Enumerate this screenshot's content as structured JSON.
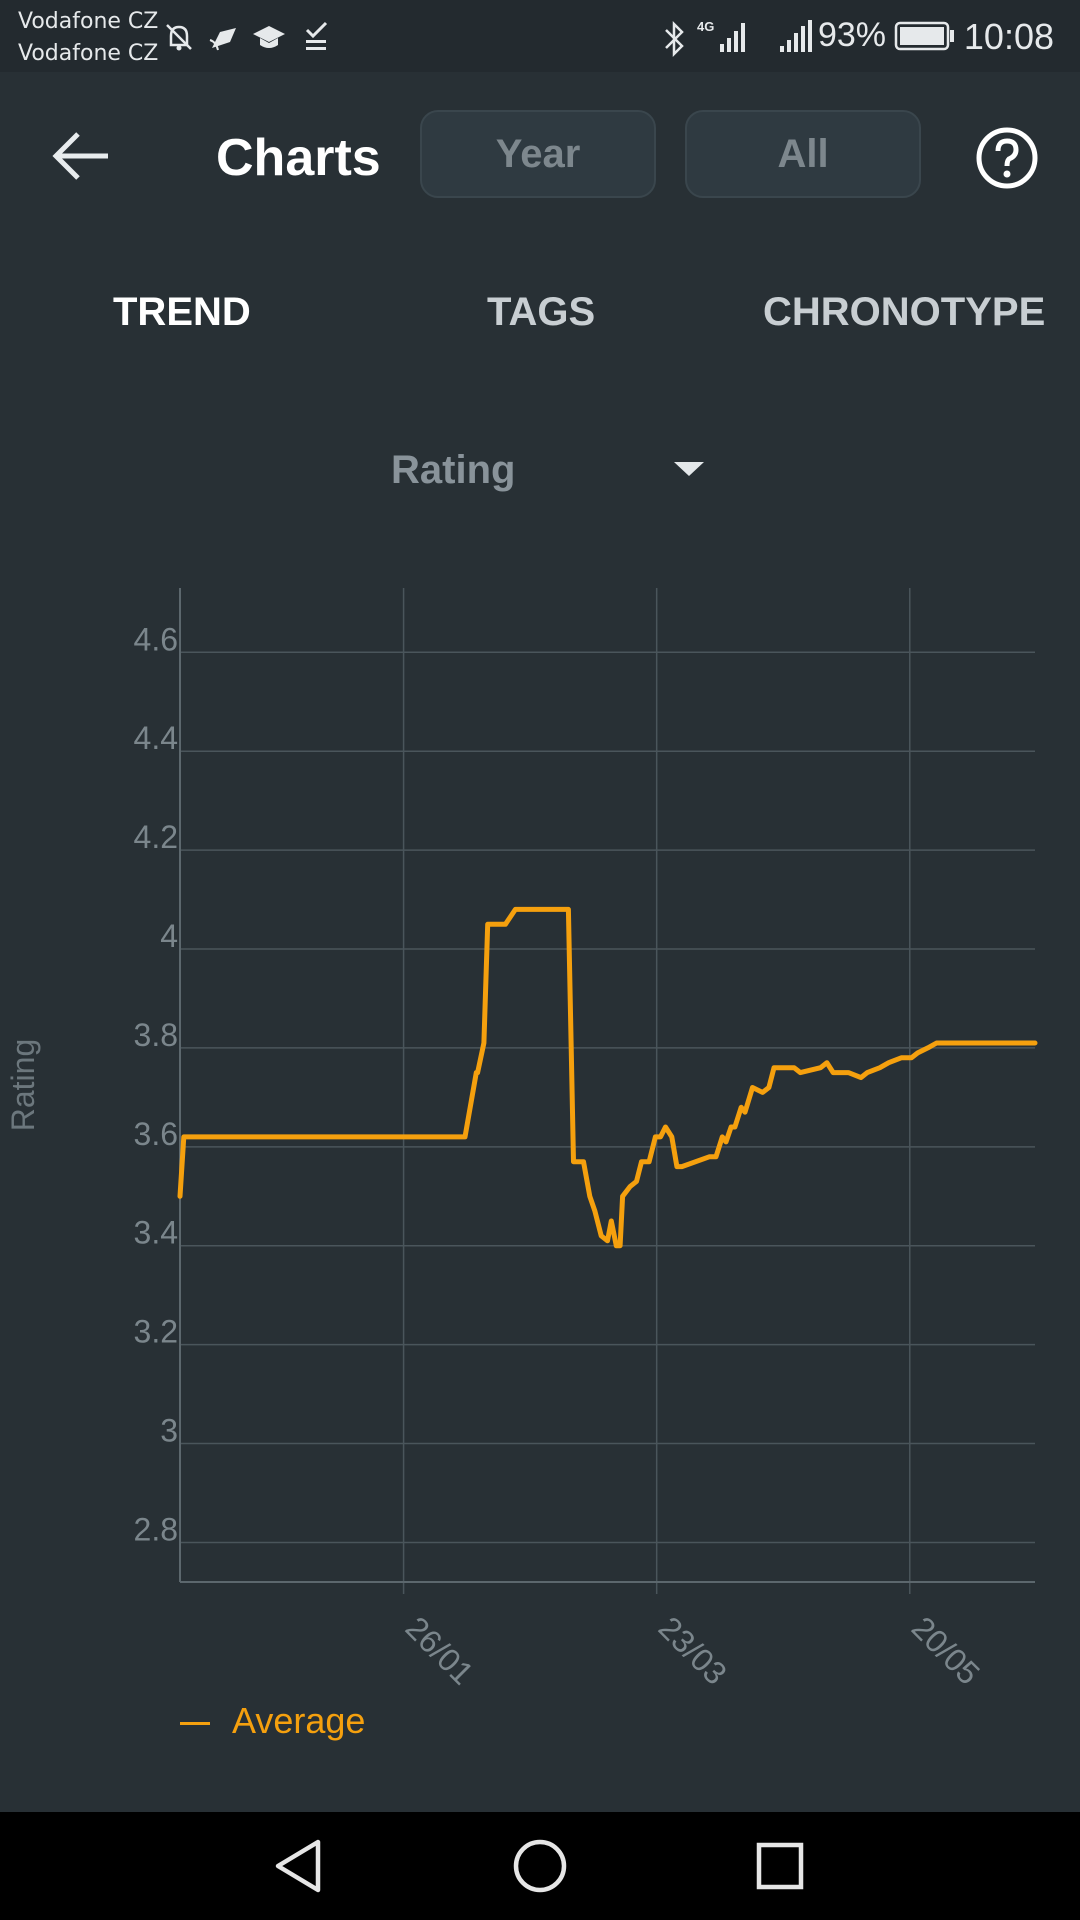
{
  "status_bar": {
    "carrier_1": "Vodafone CZ",
    "carrier_2": "Vodafone CZ",
    "battery_percent": "93%",
    "time": "10:08",
    "icons": [
      "notifications-off-icon",
      "cast-icon",
      "school-icon",
      "task-done-icon",
      "bluetooth-icon",
      "4g-signal-icon",
      "signal-icon",
      "battery-icon"
    ]
  },
  "header": {
    "title": "Charts",
    "period_options": [
      "Year",
      "All"
    ],
    "back_icon": "arrow-left-icon",
    "help_icon": "help-circle-icon"
  },
  "tabs": [
    {
      "label": "TREND",
      "active": true
    },
    {
      "label": "TAGS",
      "active": false
    },
    {
      "label": "CHRONOTYPE",
      "active": false
    }
  ],
  "metric_select": {
    "selected": "Rating"
  },
  "chart_data": {
    "type": "line",
    "title": "",
    "xlabel": "",
    "ylabel": "Rating",
    "ylim": [
      2.72,
      4.73
    ],
    "y_ticks": [
      2.8,
      3,
      3.2,
      3.4,
      3.6,
      3.8,
      4,
      4.2,
      4.4,
      4.6
    ],
    "y_tick_labels": [
      "2.8",
      "3",
      "3.2",
      "3.4",
      "3.6",
      "3.8",
      "4",
      "4.2",
      "4.4",
      "4.6"
    ],
    "x_ticks": [
      1.773,
      3.78,
      5.787
    ],
    "x_tick_labels": [
      "26/01",
      "23/03",
      "20/05"
    ],
    "grid": true,
    "legend_position": "bottom-left",
    "series": [
      {
        "name": "Average",
        "color": "#f5a00e",
        "points": [
          [
            0.0,
            3.5
          ],
          [
            0.03,
            3.62
          ],
          [
            2.26,
            3.62
          ],
          [
            2.35,
            3.75
          ],
          [
            2.36,
            3.75
          ],
          [
            2.41,
            3.81
          ],
          [
            2.44,
            4.05
          ],
          [
            2.58,
            4.05
          ],
          [
            2.66,
            4.08
          ],
          [
            3.08,
            4.08
          ],
          [
            3.12,
            3.57
          ],
          [
            3.2,
            3.57
          ],
          [
            3.25,
            3.5
          ],
          [
            3.29,
            3.47
          ],
          [
            3.34,
            3.42
          ],
          [
            3.39,
            3.41
          ],
          [
            3.42,
            3.45
          ],
          [
            3.46,
            3.4
          ],
          [
            3.49,
            3.4
          ],
          [
            3.51,
            3.5
          ],
          [
            3.57,
            3.52
          ],
          [
            3.62,
            3.53
          ],
          [
            3.66,
            3.57
          ],
          [
            3.72,
            3.57
          ],
          [
            3.77,
            3.62
          ],
          [
            3.81,
            3.62
          ],
          [
            3.85,
            3.64
          ],
          [
            3.9,
            3.62
          ],
          [
            3.94,
            3.56
          ],
          [
            3.98,
            3.56
          ],
          [
            4.2,
            3.58
          ],
          [
            4.25,
            3.58
          ],
          [
            4.3,
            3.62
          ],
          [
            4.33,
            3.61
          ],
          [
            4.37,
            3.64
          ],
          [
            4.4,
            3.64
          ],
          [
            4.45,
            3.68
          ],
          [
            4.48,
            3.67
          ],
          [
            4.54,
            3.72
          ],
          [
            4.62,
            3.71
          ],
          [
            4.67,
            3.72
          ],
          [
            4.71,
            3.76
          ],
          [
            4.87,
            3.76
          ],
          [
            4.92,
            3.75
          ],
          [
            5.08,
            3.76
          ],
          [
            5.13,
            3.77
          ],
          [
            5.18,
            3.75
          ],
          [
            5.3,
            3.75
          ],
          [
            5.4,
            3.74
          ],
          [
            5.45,
            3.75
          ],
          [
            5.55,
            3.76
          ],
          [
            5.62,
            3.77
          ],
          [
            5.72,
            3.78
          ],
          [
            5.8,
            3.78
          ],
          [
            5.85,
            3.79
          ],
          [
            5.93,
            3.8
          ],
          [
            6.0,
            3.81
          ],
          [
            6.2,
            3.81
          ],
          [
            6.78,
            3.81
          ]
        ]
      }
    ]
  },
  "navigation_bar": {
    "icons": [
      "back-triangle-icon",
      "home-circle-icon",
      "recents-square-icon"
    ]
  }
}
